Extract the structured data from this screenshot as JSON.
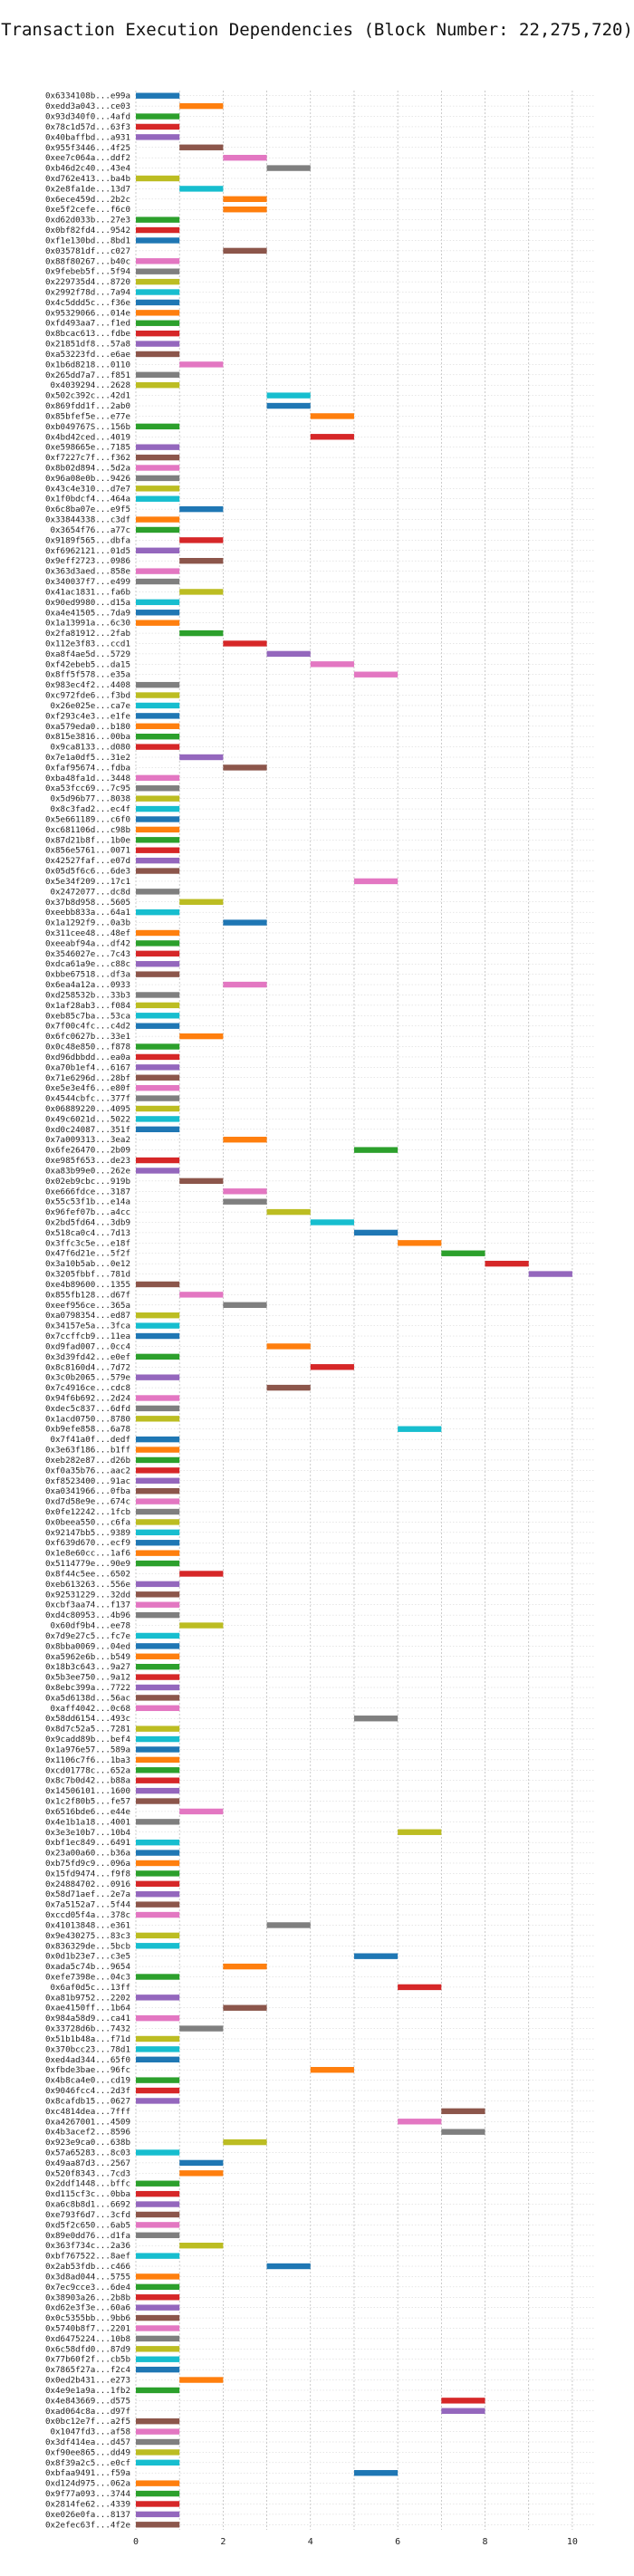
{
  "chart_data": {
    "type": "bar",
    "orientation": "horizontal",
    "title": "Transaction Execution Dependencies (Block Number: 22,275,720)",
    "xlabel": "",
    "ylabel": "",
    "xlim": [
      0,
      10.5
    ],
    "xticks": [
      "0",
      "2",
      "4",
      "6",
      "8",
      "10"
    ],
    "grid": true,
    "bar_width": 1,
    "colors": [
      "#1f77b4",
      "#ff7f0e",
      "#2ca02c",
      "#d62728",
      "#9467bd",
      "#8c564b",
      "#e377c2",
      "#7f7f7f",
      "#bcbd22",
      "#17becf"
    ],
    "transactions": [
      "0x6334108b...e99a",
      "0xedd3a043...ce03",
      "0x93d340f0...4afd",
      "0x78c1d57d...63f3",
      "0x40baffbd...a931",
      "0x955f3446...4f25",
      "0xee7c064a...ddf2",
      "0xb46d2c40...43e4",
      "0xd762e413...ba4b",
      "0x2e8fa1de...13d7",
      "0x6ece459d...2b2c",
      "0xe5f2cefe...f6c0",
      "0xd62d033b...27e3",
      "0x0bf82fd4...9542",
      "0xf1e130bd...8bd1",
      "0x035781df...c027",
      "0x88f80267...b40c",
      "0x9febeb5f...5f94",
      "0x229735d4...8720",
      "0x2992f78d...7a94",
      "0x4c5ddd5c...f36e",
      "0x95329066...014e",
      "0xfd493aa7...f1ed",
      "0x8bcac613...fdbe",
      "0x21851df8...57a8",
      "0xa53223fd...e6ae",
      "0x1b6d8218...0110",
      "0x265dd7a7...f851",
      "0x4039294...2628",
      "0x502c392c...42d1",
      "0x869fdd1f...2ab0",
      "0x85bfef5e...e77e",
      "0xb049767S...156b",
      "0x4bd42ced...4019",
      "0xe598665e...7185",
      "0xf7227c7f...f362",
      "0x8b02d894...5d2a",
      "0x96a08e0b...9426",
      "0x43c4e310...d7e7",
      "0x1f0bdcf4...464a",
      "0x6c8ba07e...e9f5",
      "0x33844338...c3df",
      "0x3654f76...a77c",
      "0x9189f565...dbfa",
      "0xf6962121...01d5",
      "0x9eff2723...0986",
      "0x363d3aed...858e",
      "0x340037f7...e499",
      "0x41ac1831...fa6b",
      "0x90ed9980...d15a",
      "0xa4e41505...7da9",
      "0x1a13991a...6c30",
      "0x2fa81912...2fab",
      "0x112e3f83...ccd1",
      "0xa8f4ae5d...5729",
      "0xf42ebeb5...da15",
      "0x8ff5f578...e35a",
      "0x983ec4f2...4408",
      "0xc972fde6...f3bd",
      "0x26e025e...ca7e",
      "0xf293c4e3...e1fe",
      "0xa579eda0...b180",
      "0x815e3816...00ba",
      "0x9ca8133...d080",
      "0x7e1a0df5...31e2",
      "0xfaf95674...fdba",
      "0xba48fa1d...3448",
      "0xa53fcc69...7c95",
      "0x5d96b77...8038",
      "0x8c3fad2...ec4f",
      "0x5e661189...c6f0",
      "0xc681106d...c98b",
      "0x87d21b8f...1b0e",
      "0x856e5761...0071",
      "0x42527faf...e07d",
      "0x05d5f6c6...6de3",
      "0x5e34f209...17c1",
      "0x2472077...dc8d",
      "0x37b8d958...5605",
      "0xeebb833a...64a1",
      "0x1a1292f9...0a3b",
      "0x311cee48...48ef",
      "0xeeabf94a...df42",
      "0x3546027e...7c43",
      "0xdca61a9e...c88c",
      "0xbbe67518...df3a",
      "0x6ea4a12a...0933",
      "0xd258532b...33b3",
      "0x1af28ab3...f084",
      "0xeb85c7ba...53ca",
      "0x7f00c4fc...c4d2",
      "0x6fc0627b...33e1",
      "0x0c48e850...f878",
      "0xd96dbbdd...ea0a",
      "0xa70b1ef4...6167",
      "0x71e6296d...28bf",
      "0xe5e3e4f6...e80f",
      "0x4544cbfc...377f",
      "0x06889220...4095",
      "0x49c6021d...5022",
      "0xd0c24087...351f",
      "0x7a009313...3ea2",
      "0x6fe26470...2b09",
      "0xe985f653...de23",
      "0xa83b99e0...262e",
      "0x02eb9cbc...919b",
      "0xe666fdce...3187",
      "0x55c53f1b...e14a",
      "0x96fef07b...a4cc",
      "0x2bd5fd64...3db9",
      "0x518ca0c4...7d13",
      "0x3ffc3c5e...e18f",
      "0x47f6d21e...5f2f",
      "0x3a10b5ab...0e12",
      "0x3205fbbf...781d",
      "0xe4b89600...1355",
      "0x855fb128...d67f",
      "0xeef956ce...365a",
      "0xa0798354...ed87",
      "0x34157e5a...3fca",
      "0x7ccffcb9...11ea",
      "0xd9fad007...0cc4",
      "0x3d39fd42...e0ef",
      "0x8c8160d4...7d72",
      "0x3c0b2065...579e",
      "0x7c4916ce...cdc8",
      "0x94f6b692...2d24",
      "0xdec5c837...6dfd",
      "0x1acd0750...8780",
      "0xb9efe858...6a78",
      "0x7f41a0f...dedf",
      "0x3e63f186...b1ff",
      "0xeb282e87...d26b",
      "0xf0a35b76...aac2",
      "0xf8523400...91ac",
      "0xa0341966...0fba",
      "0xd7d58e9e...674c",
      "0x0fe12242...1fcb",
      "0x0beea550...c6fa",
      "0x92147bb5...9389",
      "0xf639d670...ecf9",
      "0x1e8e60cc...1af6",
      "0x5114779e...90e9",
      "0x8f44c5ee...6502",
      "0xeb613263...556e",
      "0x92531229...32dd",
      "0xcbf3aa74...f137",
      "0xd4c80953...4b96",
      "0x60df9b4...ee78",
      "0x7d9e27c5...fc7e",
      "0x8bba0069...04ed",
      "0xa5962e6b...b549",
      "0x18b3c643...9a27",
      "0x5b3ee750...9a12",
      "0x8ebc399a...7722",
      "0xa5d6138d...56ac",
      "0xaff4042...0c68",
      "0x58dd6154...493c",
      "0x8d7c52a5...7281",
      "0x9cadd89b...bef4",
      "0x1a976e57...589a",
      "0x1106c7f6...1ba3",
      "0xcd01778c...652a",
      "0x8c7b0d42...b88a",
      "0x14506101...1600",
      "0x1c2f80b5...fe57",
      "0x6516bde6...e44e",
      "0x4e1b1a18...4001",
      "0x3e3e10b7...10b4",
      "0xbf1ec849...6491",
      "0x23a00a60...b36a",
      "0xb75fd9c9...096a",
      "0x15fd9474...f9f8",
      "0x24884702...0916",
      "0x58d71aef...2e7a",
      "0x7a5152a7...5f44",
      "0xccd05f4a...378c",
      "0x41013848...e361",
      "0x9e430275...83c3",
      "0x836329de...5bcb",
      "0x0d1b23e7...c3e5",
      "0xada5c74b...9654",
      "0xefe7398e...04c3",
      "0x6af0d5c...13ff",
      "0xa81b9752...2202",
      "0xae4150ff...1b64",
      "0x984a58d9...ca41",
      "0x33728d6b...7432",
      "0x51b1b48a...f71d",
      "0x370bcc23...78d1",
      "0xed4ad344...65f0",
      "0xfbde3bae...96fc",
      "0x4b8ca4e0...cd19",
      "0x9046fcc4...2d3f",
      "0x8cafdb15...0627",
      "0xc4814dea...7fff",
      "0xa4267001...4509",
      "0x4b3acef2...8596",
      "0x923e9ca0...638b",
      "0x57a65283...8c03",
      "0x49aa87d3...2567",
      "0x520f8343...7cd3",
      "0x2ddf1448...bffc",
      "0xd115cf3c...0bba",
      "0xa6c8b8d1...6692",
      "0xe793f6d7...3cfd",
      "0xd5f2c650...6ab5",
      "0x89e0dd76...d1fa",
      "0x363f734c...2a36",
      "0xbf767522...8aef",
      "0x2ab53fdb...c466",
      "0x3d8ad044...5755",
      "0x7ec9cce3...6de4",
      "0x38903a26...2b8b",
      "0xd62e3f3e...60a6",
      "0x0c5355bb...9bb6",
      "0x5740b8f7...2201",
      "0xd6475224...10b8",
      "0x6c58dfd0...87d9",
      "0x77b60f2f...cb5b",
      "0x7865f27a...f2c4",
      "0x0ed2b431...e273",
      "0x4e9e1a9a...1fb2",
      "0x4e843669...d575",
      "0xad064c8a...d97f",
      "0x0bc12e7f...a2f5",
      "0x1047fd3...af58",
      "0x3df414ea...d457",
      "0xf90ee865...dd49",
      "0x8f39a2c5...e0cf",
      "0xbfaa9491...f59a",
      "0xd124d975...062a",
      "0x9f77a093...3744",
      "0x2814fe62...4339",
      "0xe026e0fa...8137",
      "0x2efec63f...4f2e"
    ],
    "values": [
      0,
      1,
      0,
      0,
      0,
      1,
      2,
      3,
      0,
      1,
      2,
      2,
      0,
      0,
      0,
      2,
      0,
      0,
      0,
      0,
      0,
      0,
      0,
      0,
      0,
      0,
      1,
      0,
      0,
      3,
      3,
      4,
      0,
      4,
      0,
      0,
      0,
      0,
      0,
      0,
      1,
      0,
      0,
      1,
      0,
      1,
      0,
      0,
      1,
      0,
      0,
      0,
      1,
      2,
      3,
      4,
      5,
      0,
      0,
      0,
      0,
      0,
      0,
      0,
      1,
      2,
      0,
      0,
      0,
      0,
      0,
      0,
      0,
      0,
      0,
      0,
      5,
      0,
      1,
      0,
      2,
      0,
      0,
      0,
      0,
      0,
      2,
      0,
      0,
      0,
      0,
      1,
      0,
      0,
      0,
      0,
      0,
      0,
      0,
      0,
      0,
      2,
      5,
      0,
      0,
      1,
      2,
      2,
      3,
      4,
      5,
      6,
      7,
      8,
      9,
      0,
      1,
      2,
      0,
      0,
      0,
      3,
      0,
      4,
      0,
      3,
      0,
      0,
      0,
      6,
      0,
      0,
      0,
      0,
      0,
      0,
      0,
      0,
      0,
      0,
      0,
      0,
      0,
      1,
      0,
      0,
      0,
      0,
      1,
      0,
      0,
      0,
      0,
      0,
      0,
      0,
      0,
      5,
      0,
      0,
      0,
      0,
      0,
      0,
      0,
      0,
      1,
      0,
      6,
      0,
      0,
      0,
      0,
      0,
      0,
      0,
      0,
      3,
      0,
      0,
      5,
      2,
      0,
      6,
      0,
      2,
      0,
      1,
      0,
      0,
      0,
      4,
      0,
      0,
      0,
      7,
      6,
      7,
      2,
      0,
      1,
      1,
      0,
      0,
      0,
      0,
      0,
      0,
      1,
      0,
      3,
      0,
      0,
      0,
      0,
      0,
      0,
      0,
      0,
      0,
      0,
      1,
      0,
      7,
      7,
      0,
      0,
      0,
      0,
      0,
      5,
      0,
      0,
      0,
      0,
      0
    ],
    "color_indices": [
      0,
      1,
      2,
      3,
      4,
      5,
      6,
      7,
      8,
      9,
      1,
      1,
      2,
      3,
      0,
      5,
      6,
      7,
      8,
      9,
      0,
      1,
      2,
      3,
      4,
      5,
      6,
      7,
      8,
      9,
      0,
      1,
      2,
      3,
      4,
      5,
      6,
      7,
      8,
      9,
      0,
      1,
      2,
      3,
      4,
      5,
      6,
      7,
      8,
      9,
      0,
      1,
      2,
      3,
      4,
      6,
      6,
      7,
      8,
      9,
      0,
      1,
      2,
      3,
      4,
      5,
      6,
      7,
      8,
      9,
      0,
      1,
      2,
      3,
      4,
      5,
      6,
      7,
      8,
      9,
      0,
      1,
      2,
      3,
      4,
      5,
      6,
      7,
      8,
      9,
      0,
      1,
      2,
      3,
      4,
      5,
      6,
      7,
      8,
      9,
      0,
      1,
      2,
      3,
      4,
      5,
      6,
      7,
      8,
      9,
      0,
      1,
      2,
      3,
      4,
      5,
      6,
      7,
      8,
      9,
      0,
      1,
      2,
      3,
      4,
      5,
      6,
      7,
      8,
      9,
      0,
      1,
      2,
      3,
      4,
      5,
      6,
      7,
      8,
      9,
      0,
      1,
      2,
      3,
      4,
      5,
      6,
      7,
      8,
      9,
      0,
      1,
      2,
      3,
      4,
      5,
      6,
      7,
      8,
      9,
      0,
      1,
      2,
      3,
      4,
      5,
      6,
      7,
      8,
      9,
      0,
      1,
      2,
      3,
      4,
      5,
      6,
      7,
      8,
      9,
      0,
      1,
      2,
      3,
      4,
      5,
      6,
      7,
      8,
      9,
      0,
      1,
      2,
      3,
      4,
      5,
      6,
      7,
      8,
      9,
      0,
      1,
      2,
      3,
      4,
      5,
      6,
      7,
      8,
      9,
      0,
      1,
      2,
      3,
      4,
      5,
      6,
      7,
      8,
      9,
      0,
      1,
      2,
      3,
      4,
      5,
      6,
      7,
      8,
      9,
      0,
      1,
      2,
      3,
      4,
      5,
      6,
      7,
      8,
      9,
      0,
      1,
      2,
      3,
      4
    ]
  }
}
